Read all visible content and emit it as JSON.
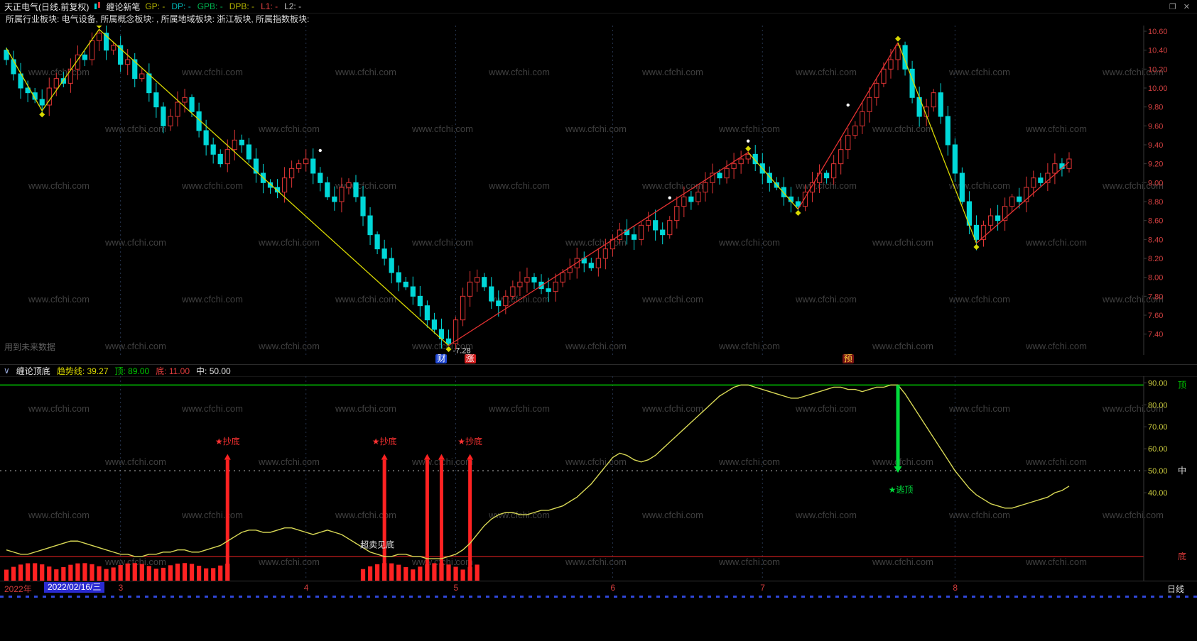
{
  "window": {
    "title": "天正电气(日线.前复权)",
    "indicator_label": "缠论新笔",
    "params": [
      {
        "label": "GP:",
        "value": "-",
        "color": "#b4b400"
      },
      {
        "label": "DP:",
        "value": "-",
        "color": "#00b4b4"
      },
      {
        "label": "GPB:",
        "value": "-",
        "color": "#00b450"
      },
      {
        "label": "DPB:",
        "value": "-",
        "color": "#b4b400"
      },
      {
        "label": "L1:",
        "value": "-",
        "color": "#e04040"
      },
      {
        "label": "L2:",
        "value": "-",
        "color": "#c0c0c0"
      }
    ],
    "controls": [
      "❐",
      "✕"
    ]
  },
  "icons": {
    "collapse": "∨"
  },
  "info_bar": {
    "text": "所属行业板块: 电气设备, 所属概念板块: , 所属地域板块: 浙江板块, 所属指数板块:"
  },
  "watermark": {
    "text": "www.cfchi.com"
  },
  "colors": {
    "up": "#e03434",
    "down": "#00d8d8",
    "pen_yellow": "#d8d800",
    "pen_red": "#e63232",
    "signal_red": "#ff2222",
    "top_line": "#00c800",
    "bottom_line": "#d82020",
    "mid_line": "#c8c8c8",
    "curve": "#d8d855",
    "axis_main": "#d24040",
    "axis_ind": "#cfcf3f",
    "watermark": "#404040",
    "grid": "#26344e",
    "date_chip_bg": "#2b2bd0",
    "month": "#d23c3c",
    "buy": "#ff3232",
    "sell": "#00dc3c",
    "future_note": "#5f5f5f"
  },
  "indicator_header": {
    "name": "缠论顶底",
    "items": [
      {
        "label": "趋势线:",
        "value": "39.27",
        "color": "#d8d800"
      },
      {
        "label": "顶:",
        "value": "89.00",
        "color": "#00c800"
      },
      {
        "label": "底:",
        "value": "11.00",
        "color": "#e03c3c"
      },
      {
        "label": "中:",
        "value": "50.00",
        "color": "#e0e0e0"
      }
    ]
  },
  "timeline": {
    "year": "2022年",
    "date_chip": "2022/02/16/三",
    "months": [
      {
        "label": "3",
        "idx": 16
      },
      {
        "label": "4",
        "idx": 42
      },
      {
        "label": "5",
        "idx": 63
      },
      {
        "label": "6",
        "idx": 85
      },
      {
        "label": "7",
        "idx": 106
      },
      {
        "label": "8",
        "idx": 133
      }
    ],
    "period": "日线"
  },
  "chart_data": [
    {
      "type": "candlestick",
      "title": "天正电气 日线 前复权 K线",
      "ylabel": "价格(元)",
      "ylim": [
        7.18,
        10.66
      ],
      "y_ticks": [
        10.6,
        10.4,
        10.2,
        10.0,
        9.8,
        9.6,
        9.4,
        9.2,
        9.0,
        8.8,
        8.6,
        8.4,
        8.2,
        8.0,
        7.8,
        7.6,
        7.4
      ],
      "closes": [
        10.3,
        10.15,
        10.0,
        9.95,
        9.88,
        9.82,
        10.0,
        10.1,
        10.05,
        10.2,
        10.35,
        10.3,
        10.5,
        10.58,
        10.4,
        10.45,
        10.25,
        10.3,
        10.1,
        10.15,
        9.95,
        9.8,
        9.6,
        9.7,
        9.85,
        9.9,
        9.75,
        9.55,
        9.4,
        9.3,
        9.2,
        9.35,
        9.45,
        9.4,
        9.25,
        9.1,
        9.0,
        8.95,
        8.9,
        9.05,
        9.15,
        9.2,
        9.25,
        9.1,
        9.0,
        8.85,
        8.8,
        8.95,
        9.0,
        8.85,
        8.65,
        8.45,
        8.3,
        8.2,
        8.05,
        7.95,
        7.9,
        7.8,
        7.7,
        7.55,
        7.45,
        7.35,
        7.3,
        7.55,
        7.8,
        7.95,
        8.0,
        7.9,
        7.75,
        7.7,
        7.8,
        7.9,
        7.95,
        8.0,
        7.95,
        7.88,
        7.85,
        7.95,
        8.05,
        8.1,
        8.2,
        8.15,
        8.1,
        8.2,
        8.3,
        8.4,
        8.5,
        8.45,
        8.4,
        8.55,
        8.6,
        8.5,
        8.45,
        8.6,
        8.75,
        8.85,
        8.8,
        8.9,
        9.0,
        9.1,
        9.05,
        9.15,
        9.2,
        9.25,
        9.3,
        9.2,
        9.1,
        9.0,
        8.95,
        8.85,
        8.8,
        8.75,
        8.9,
        9.0,
        9.1,
        9.05,
        9.2,
        9.35,
        9.5,
        9.6,
        9.75,
        9.9,
        10.05,
        10.2,
        10.3,
        10.45,
        10.2,
        9.9,
        9.7,
        9.8,
        9.95,
        9.7,
        9.4,
        9.1,
        8.8,
        8.55,
        8.4,
        8.55,
        8.65,
        8.6,
        8.75,
        8.85,
        8.8,
        8.95,
        9.05,
        9.0,
        9.1,
        9.2,
        9.15,
        9.25
      ],
      "extremes": {
        "13": {
          "high": 10.62
        },
        "62": {
          "low": 7.28
        },
        "125": {
          "high": 10.48
        }
      },
      "segments": [
        {
          "color": "#d8d800",
          "points": [
            [
              0,
              10.42
            ],
            [
              5,
              9.76
            ],
            [
              13,
              10.62
            ],
            [
              62,
              7.28
            ]
          ]
        },
        {
          "color": "#e63232",
          "points": [
            [
              62,
              7.28
            ],
            [
              104,
              9.32
            ]
          ]
        },
        {
          "color": "#d8d800",
          "points": [
            [
              104,
              9.32
            ],
            [
              111,
              8.72
            ]
          ]
        },
        {
          "color": "#e63232",
          "points": [
            [
              111,
              8.72
            ],
            [
              125,
              10.48
            ]
          ]
        },
        {
          "color": "#d8d800",
          "points": [
            [
              125,
              10.48
            ],
            [
              136,
              8.36
            ]
          ]
        },
        {
          "color": "#e63232",
          "points": [
            [
              136,
              8.36
            ],
            [
              149,
              9.22
            ]
          ]
        }
      ],
      "diamonds": [
        [
          5,
          9.72
        ],
        [
          13,
          10.66
        ],
        [
          62,
          7.24
        ],
        [
          104,
          9.36
        ],
        [
          111,
          8.68
        ],
        [
          125,
          10.52
        ],
        [
          136,
          8.32
        ]
      ],
      "dots": [
        [
          44,
          9.34
        ],
        [
          93,
          8.84
        ],
        [
          104,
          9.44
        ],
        [
          118,
          9.82
        ]
      ],
      "low_label": {
        "idx": 62,
        "price": 7.28,
        "text": "-7.28"
      },
      "future_note": "用到未来数据",
      "signals": [
        {
          "text": "财",
          "fg": "#ffffff",
          "bg": "#1e46d2",
          "idx": 61
        },
        {
          "text": "涨",
          "fg": "#ffffff",
          "bg": "#d22020",
          "idx": 65
        },
        {
          "text": "预",
          "fg": "#ffd23c",
          "bg": "#781414",
          "idx": 118
        }
      ]
    },
    {
      "type": "line",
      "title": "缠论顶底 趋势线",
      "ylim": [
        0,
        93
      ],
      "y_ticks": [
        90.0,
        80.0,
        70.0,
        60.0,
        50.0,
        40.0
      ],
      "top_line": 89,
      "bottom_line": 11,
      "mid_line": 50,
      "values": [
        14,
        13,
        12,
        12,
        13,
        14,
        15,
        16,
        17,
        18,
        18,
        17,
        16,
        15,
        14,
        13,
        12,
        12,
        11,
        11,
        12,
        12,
        13,
        13,
        14,
        14,
        13,
        13,
        14,
        15,
        16,
        18,
        20,
        22,
        23,
        23,
        22,
        22,
        23,
        24,
        24,
        23,
        22,
        21,
        22,
        23,
        22,
        21,
        19,
        17,
        15,
        13,
        12,
        11,
        11,
        12,
        12,
        11,
        11,
        10,
        10,
        10,
        11,
        12,
        14,
        17,
        21,
        25,
        28,
        30,
        31,
        31,
        30,
        30,
        31,
        32,
        32,
        33,
        34,
        36,
        38,
        41,
        44,
        48,
        52,
        56,
        58,
        57,
        55,
        54,
        55,
        57,
        60,
        63,
        66,
        69,
        72,
        75,
        78,
        81,
        84,
        86,
        88,
        89,
        89,
        88,
        87,
        86,
        85,
        84,
        83,
        83,
        84,
        85,
        86,
        87,
        88,
        88,
        87,
        87,
        86,
        87,
        88,
        88,
        89,
        89,
        85,
        80,
        75,
        70,
        65,
        60,
        55,
        50,
        46,
        42,
        39,
        37,
        35,
        34,
        33,
        33,
        34,
        35,
        36,
        37,
        38,
        40,
        41,
        43
      ],
      "oversold_ranges": [
        [
          0,
          31
        ],
        [
          50,
          66
        ]
      ],
      "signal_bars": [
        31,
        53,
        59,
        61,
        65
      ],
      "signal_bar_top": 55,
      "buy_labels": [
        {
          "idx": 31,
          "text": "★抄底"
        },
        {
          "idx": 53,
          "text": "★抄底"
        },
        {
          "idx": 65,
          "text": "★抄底"
        }
      ],
      "sell_arrow": {
        "idx": 125,
        "from": 89,
        "to": 52,
        "text": "★逃顶"
      },
      "note": {
        "idx": 52,
        "value": 15,
        "text": "超卖见底"
      },
      "right_labels": [
        {
          "text": "顶",
          "value": 89,
          "color": "#00c800"
        },
        {
          "text": "中",
          "value": 50,
          "color": "#e0e0e0"
        },
        {
          "text": "底",
          "value": 11,
          "color": "#e03c3c"
        }
      ]
    }
  ]
}
